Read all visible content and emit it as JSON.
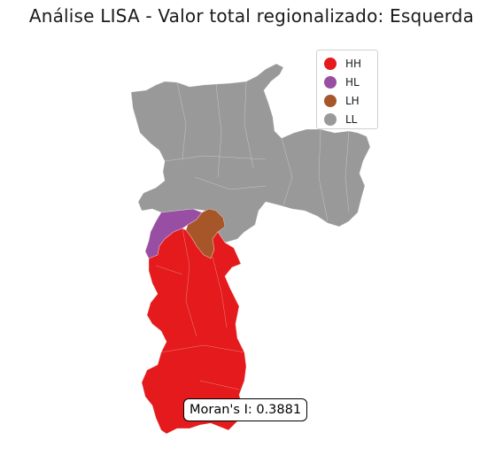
{
  "title": "Análise LISA - Valor total regionalizado: Esquerda",
  "legend": {
    "items": [
      {
        "label": "HH",
        "color": "#e41a1c"
      },
      {
        "label": "HL",
        "color": "#984ea3"
      },
      {
        "label": "LH",
        "color": "#a65628"
      },
      {
        "label": "LL",
        "color": "#999999"
      }
    ]
  },
  "annotation": {
    "morans_label": "Moran's I: 0.3881"
  }
}
